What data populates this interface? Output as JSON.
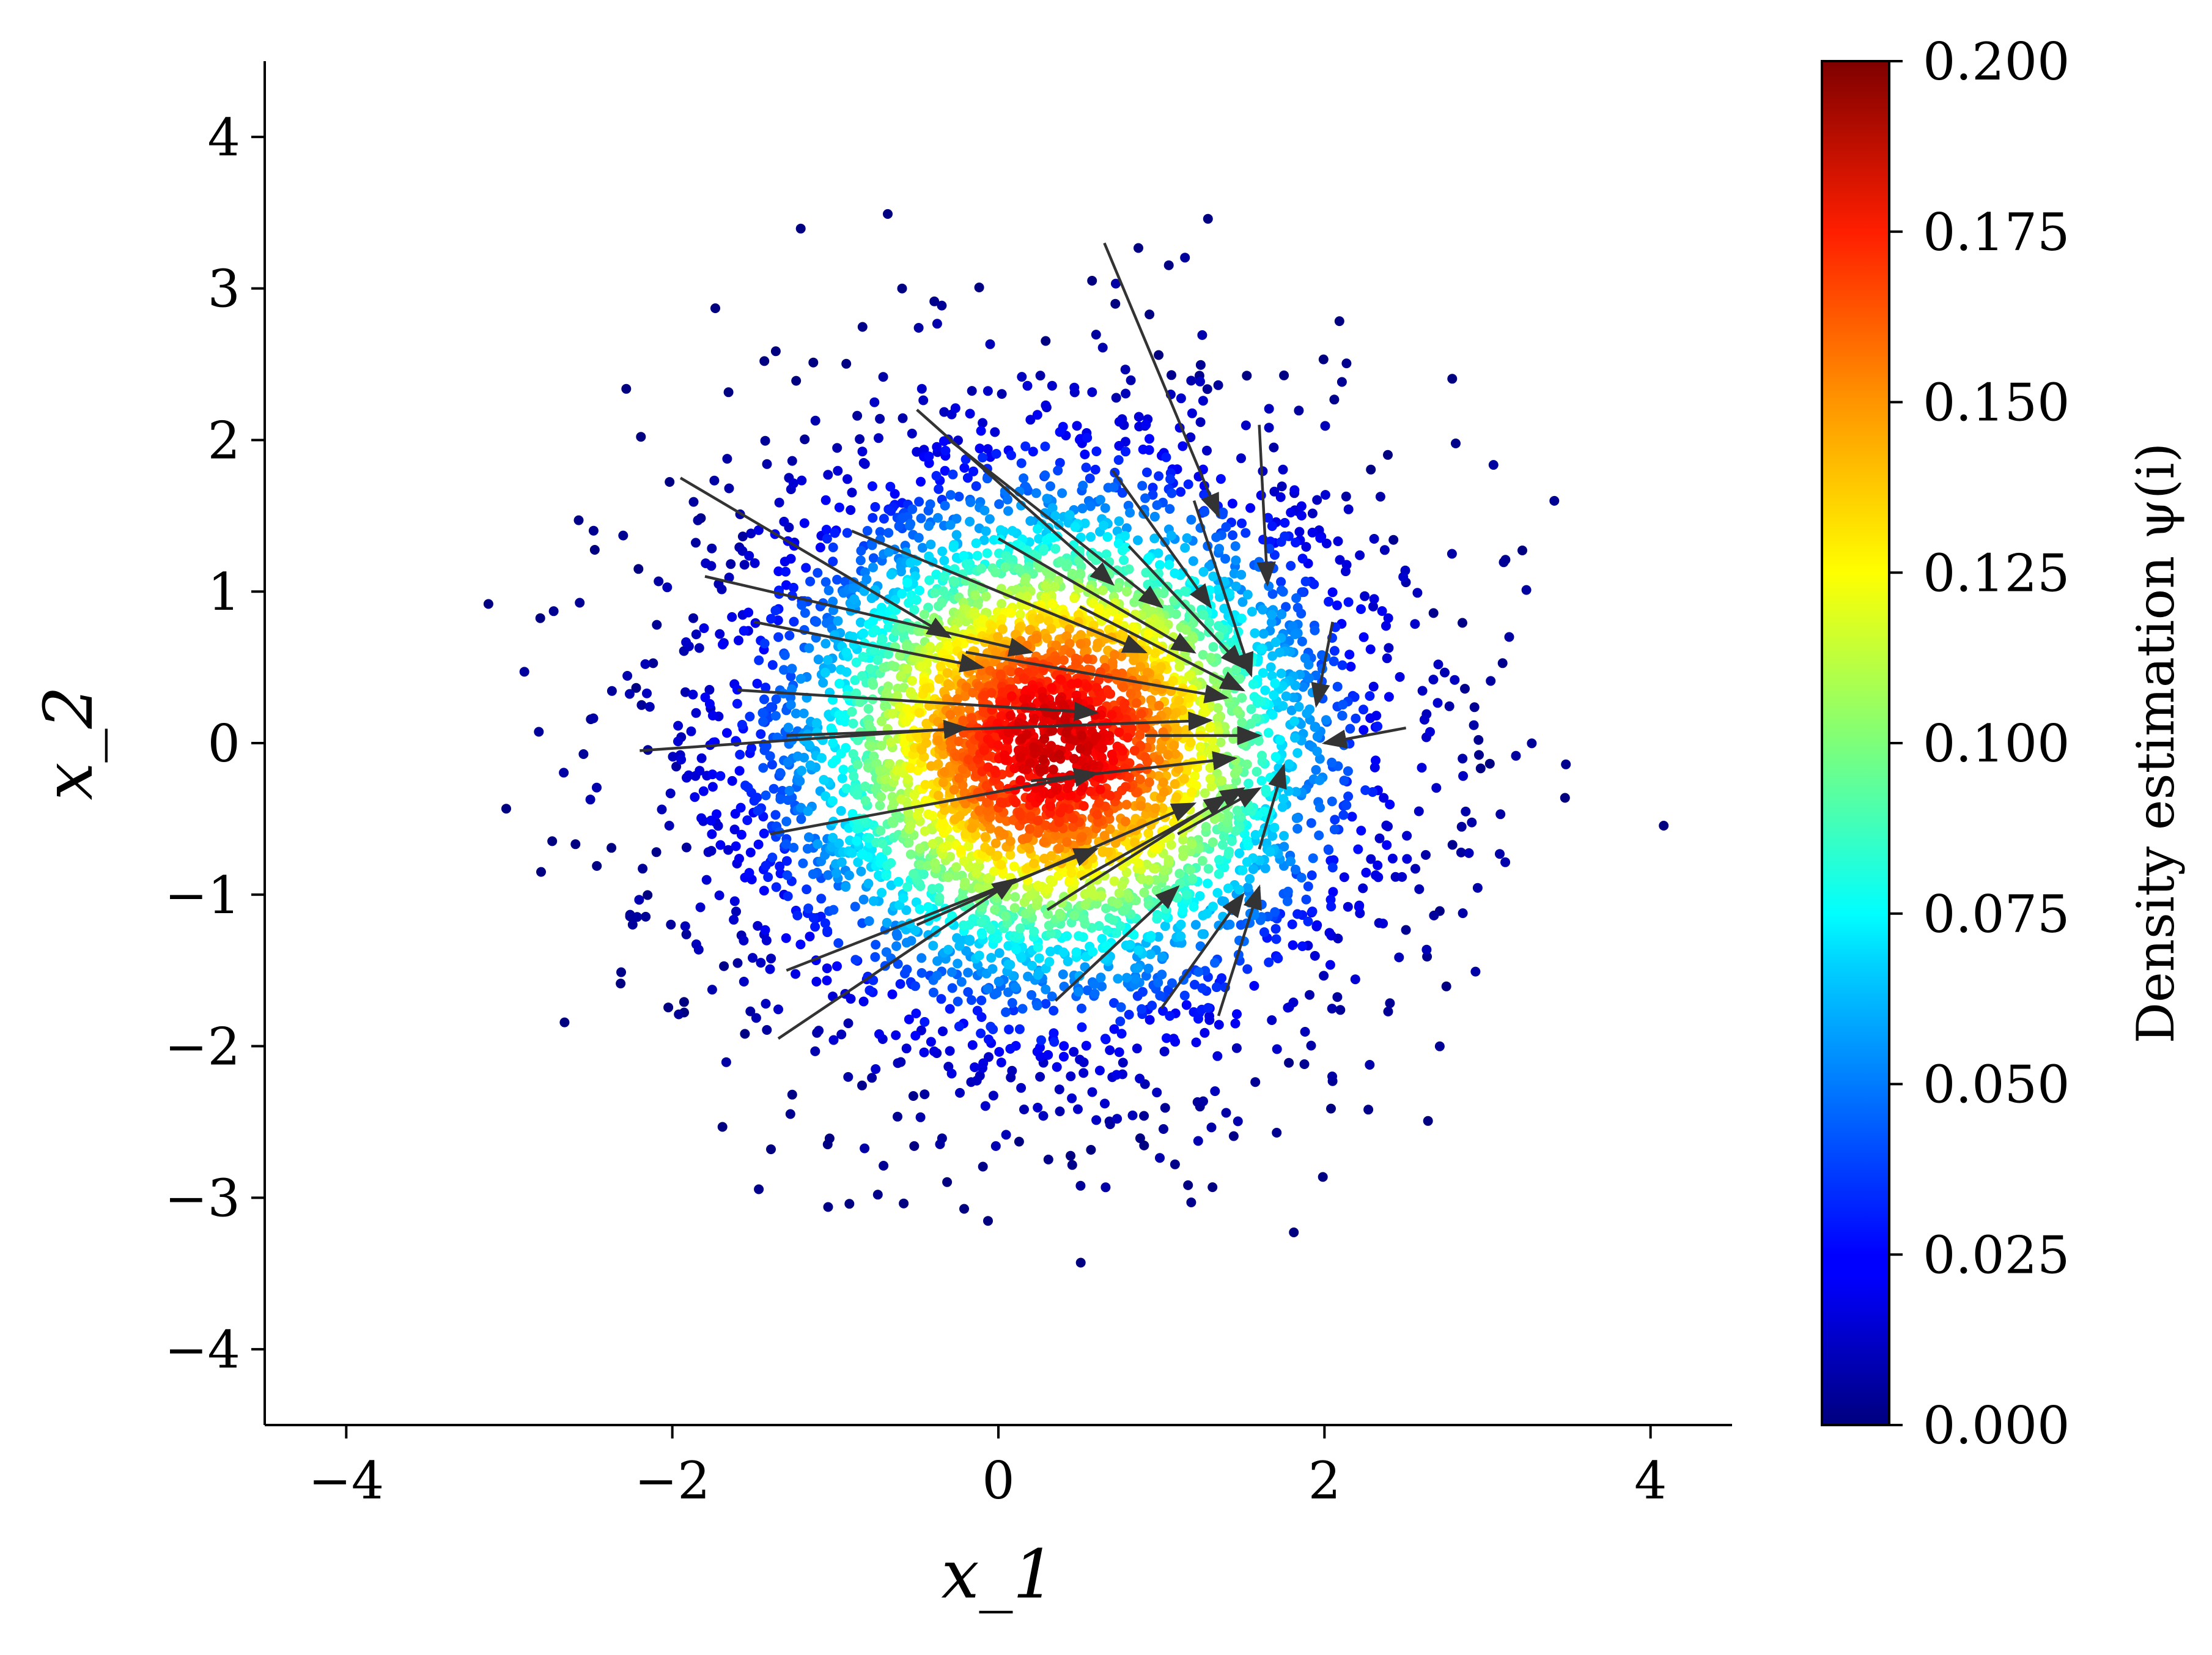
{
  "chart_data": {
    "type": "scatter",
    "title": "",
    "xlabel": "x_1",
    "ylabel": "x_2",
    "xlim": [
      -4.5,
      4.5
    ],
    "ylim": [
      -4.5,
      4.5
    ],
    "xticks": [
      -4,
      -2,
      0,
      2,
      4
    ],
    "yticks": [
      -4,
      -3,
      -2,
      -1,
      0,
      1,
      2,
      3,
      4
    ],
    "xtick_labels": [
      "−4",
      "−2",
      "0",
      "2",
      "4"
    ],
    "ytick_labels": [
      "−4",
      "−3",
      "−2",
      "−1",
      "0",
      "1",
      "2",
      "3",
      "4"
    ],
    "grid": false,
    "scatter": {
      "distribution": "gaussian",
      "center": [
        0.3,
        0.0
      ],
      "std": 1.0,
      "count": 5000,
      "color_by": "density",
      "colormap": "jet"
    },
    "colorbar": {
      "label": "Density estimation ψ(i)",
      "vmin": 0.0,
      "vmax": 0.2,
      "ticks": [
        0.0,
        0.025,
        0.05,
        0.075,
        0.1,
        0.125,
        0.15,
        0.175,
        0.2
      ],
      "tick_labels": [
        "0.000",
        "0.025",
        "0.050",
        "0.075",
        "0.100",
        "0.125",
        "0.150",
        "0.175",
        "0.200"
      ]
    },
    "arrows": {
      "color": "#333333",
      "target_region": [
        1.7,
        0.05
      ],
      "vectors": [
        {
          "x0": 0.65,
          "y0": 3.3,
          "x1": 1.35,
          "y1": 1.5
        },
        {
          "x0": -1.95,
          "y0": 1.75,
          "x1": -0.3,
          "y1": 0.7
        },
        {
          "x0": -0.5,
          "y0": 2.2,
          "x1": 0.7,
          "y1": 1.05
        },
        {
          "x0": -0.3,
          "y0": 2.0,
          "x1": 1.0,
          "y1": 0.9
        },
        {
          "x0": 0.7,
          "y0": 1.8,
          "x1": 1.3,
          "y1": 0.9
        },
        {
          "x0": 1.6,
          "y0": 2.1,
          "x1": 1.65,
          "y1": 1.05
        },
        {
          "x0": -1.8,
          "y0": 1.1,
          "x1": 0.2,
          "y1": 0.6
        },
        {
          "x0": -1.5,
          "y0": 0.8,
          "x1": -0.1,
          "y1": 0.5
        },
        {
          "x0": -0.9,
          "y0": 1.4,
          "x1": 0.9,
          "y1": 0.6
        },
        {
          "x0": 0.0,
          "y0": 1.35,
          "x1": 1.2,
          "y1": 0.6
        },
        {
          "x0": -1.6,
          "y0": 0.35,
          "x1": 0.6,
          "y1": 0.2
        },
        {
          "x0": -2.2,
          "y0": -0.05,
          "x1": -0.2,
          "y1": 0.1
        },
        {
          "x0": -1.3,
          "y0": 0.05,
          "x1": 1.3,
          "y1": 0.15
        },
        {
          "x0": -0.2,
          "y0": 0.6,
          "x1": 1.4,
          "y1": 0.3
        },
        {
          "x0": 0.5,
          "y0": 0.9,
          "x1": 1.5,
          "y1": 0.35
        },
        {
          "x0": 1.2,
          "y0": 1.6,
          "x1": 1.55,
          "y1": 0.45
        },
        {
          "x0": 0.8,
          "y0": 1.3,
          "x1": 1.5,
          "y1": 0.5
        },
        {
          "x0": -1.4,
          "y0": -0.6,
          "x1": 0.6,
          "y1": -0.2
        },
        {
          "x0": -1.3,
          "y0": -1.5,
          "x1": 0.6,
          "y1": -0.7
        },
        {
          "x0": -1.35,
          "y0": -1.95,
          "x1": 0.1,
          "y1": -0.9
        },
        {
          "x0": -0.5,
          "y0": -1.2,
          "x1": 1.2,
          "y1": -0.4
        },
        {
          "x0": 0.3,
          "y0": -1.1,
          "x1": 1.4,
          "y1": -0.35
        },
        {
          "x0": 0.5,
          "y0": -0.9,
          "x1": 1.5,
          "y1": -0.3
        },
        {
          "x0": 0.35,
          "y0": -1.7,
          "x1": 1.1,
          "y1": -0.95
        },
        {
          "x0": 1.0,
          "y0": -1.75,
          "x1": 1.5,
          "y1": -1.0
        },
        {
          "x0": 1.35,
          "y0": -1.8,
          "x1": 1.6,
          "y1": -0.95
        },
        {
          "x0": 1.1,
          "y0": -0.6,
          "x1": 1.6,
          "y1": -0.3
        },
        {
          "x0": 1.6,
          "y0": -0.7,
          "x1": 1.75,
          "y1": -0.15
        },
        {
          "x0": 2.05,
          "y0": 0.8,
          "x1": 1.95,
          "y1": 0.25
        },
        {
          "x0": 2.5,
          "y0": 0.1,
          "x1": 2.0,
          "y1": 0.0
        },
        {
          "x0": 0.9,
          "y0": 0.05,
          "x1": 1.6,
          "y1": 0.05
        },
        {
          "x0": 0.2,
          "y0": -0.25,
          "x1": 1.45,
          "y1": -0.1
        }
      ]
    }
  }
}
